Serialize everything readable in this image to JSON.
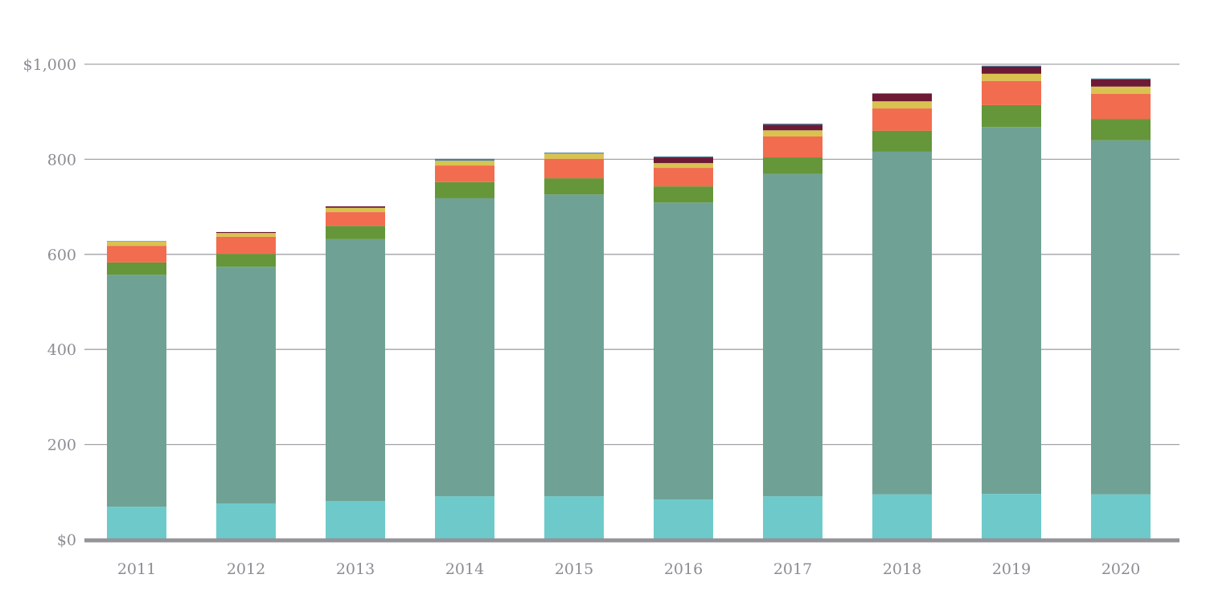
{
  "chart_data": {
    "type": "bar",
    "stacked": true,
    "title": "",
    "xlabel": "",
    "ylabel": "",
    "ylim": [
      0,
      1000
    ],
    "yticks": [
      0,
      200,
      400,
      600,
      800,
      1000
    ],
    "ytick_labels": [
      "$0",
      "200",
      "400",
      "600",
      "800",
      "$1,000"
    ],
    "grid": true,
    "legend": "none",
    "categories": [
      "2011",
      "2012",
      "2013",
      "2014",
      "2015",
      "2016",
      "2017",
      "2018",
      "2019",
      "2020"
    ],
    "series": [
      {
        "color": "#6ecaca",
        "values": [
          69,
          76,
          81,
          91,
          91,
          84,
          91,
          95,
          96,
          95
        ]
      },
      {
        "color": "#6fa295",
        "values": [
          488,
          498,
          551,
          627,
          635,
          625,
          678,
          721,
          772,
          745
        ]
      },
      {
        "color": "#659639",
        "values": [
          26,
          27,
          28,
          34,
          34,
          34,
          35,
          44,
          46,
          45
        ]
      },
      {
        "color": "#f26c4f",
        "values": [
          35,
          36,
          29,
          35,
          41,
          39,
          44,
          47,
          51,
          53
        ]
      },
      {
        "color": "#d9c250",
        "values": [
          9,
          8,
          9,
          10,
          11,
          10,
          13,
          15,
          15,
          15
        ]
      },
      {
        "color": "#6d1a36",
        "values": [
          0,
          2,
          3,
          0,
          0,
          12,
          12,
          16,
          15,
          15
        ]
      },
      {
        "color": "#4a7f9a",
        "values": [
          1,
          0,
          0,
          4,
          2,
          2,
          2,
          1,
          2,
          2
        ]
      }
    ]
  }
}
